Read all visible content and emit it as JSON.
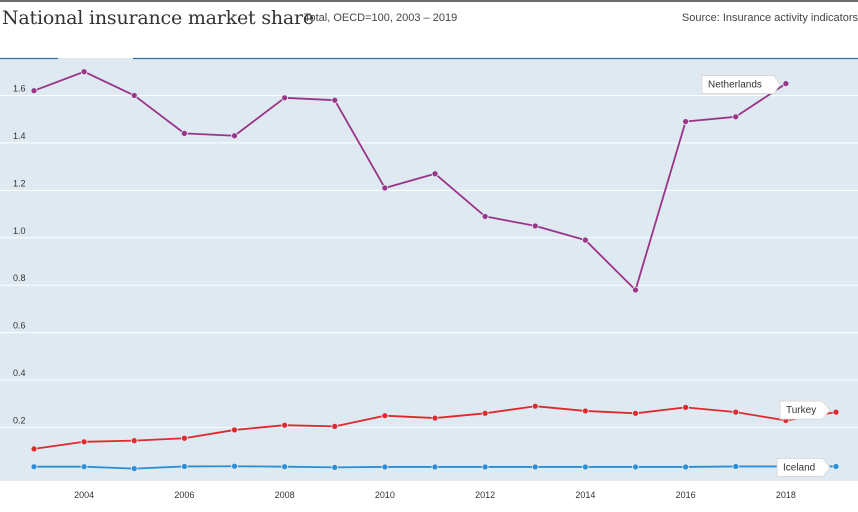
{
  "header": {
    "title": "National insurance market share",
    "subtitle": "Total, OECD=100, 2003 – 2019",
    "source": "Source: Insurance activity indicators"
  },
  "colors": {
    "plot_background": "#dfe9f1",
    "gridline": "#ffffff",
    "axis_line": "#2f6fa6",
    "Netherlands": "#993489",
    "Turkey": "#e0292d",
    "Iceland": "#2a8fd6"
  },
  "chart_data": {
    "type": "line",
    "title": "National insurance market share",
    "subtitle": "Total, OECD=100, 2003 – 2019",
    "xlabel": "",
    "ylabel": "",
    "x": [
      2003,
      2004,
      2005,
      2006,
      2007,
      2008,
      2009,
      2010,
      2011,
      2012,
      2013,
      2014,
      2015,
      2016,
      2017,
      2018,
      2019
    ],
    "xlim": [
      2003,
      2019
    ],
    "ylim": [
      0,
      1.8
    ],
    "x_ticks": [
      2004,
      2006,
      2008,
      2010,
      2012,
      2014,
      2016,
      2018
    ],
    "y_ticks": [
      0.2,
      0.4,
      0.6,
      0.8,
      1.0,
      1.2,
      1.4,
      1.6
    ],
    "y_tick_labels": [
      "0.2",
      "0.4",
      "0.6",
      "0.8",
      "1.0",
      "1.2",
      "1.4",
      "1.6"
    ],
    "grid": true,
    "legend": "direct labels at line ends",
    "series": [
      {
        "name": "Netherlands",
        "values": [
          1.62,
          1.7,
          1.6,
          1.44,
          1.43,
          1.59,
          1.58,
          1.21,
          1.27,
          1.09,
          1.05,
          0.99,
          0.78,
          1.49,
          1.51,
          1.65,
          null
        ]
      },
      {
        "name": "Turkey",
        "values": [
          0.11,
          0.14,
          0.145,
          0.155,
          0.19,
          0.21,
          0.205,
          0.25,
          0.24,
          0.26,
          0.29,
          0.27,
          0.26,
          0.285,
          0.265,
          0.23,
          0.265
        ]
      },
      {
        "name": "Iceland",
        "values": [
          0.035,
          0.035,
          0.027,
          0.036,
          0.037,
          0.035,
          0.032,
          0.034,
          0.034,
          0.034,
          0.034,
          0.034,
          0.034,
          0.034,
          0.036,
          0.036,
          0.036
        ]
      }
    ]
  }
}
